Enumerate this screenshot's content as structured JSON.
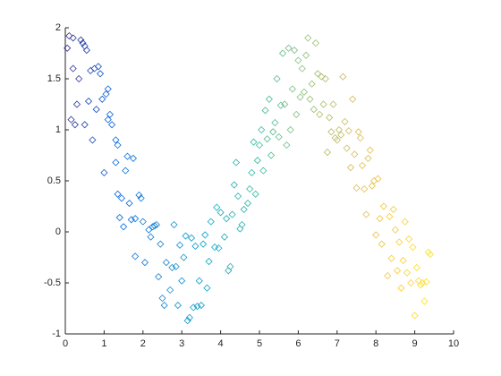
{
  "chart_data": {
    "type": "scatter",
    "marker": "diamond",
    "colormap": [
      "#352a87",
      "#0363e1",
      "#1485d4",
      "#06a7c6",
      "#38b99e",
      "#92bf73",
      "#d9ba56",
      "#fcce2e",
      "#f9fb0e"
    ],
    "x": [
      0.05,
      0.1,
      0.2,
      0.15,
      0.25,
      0.2,
      0.3,
      0.35,
      0.4,
      0.45,
      0.5,
      0.55,
      0.5,
      0.6,
      0.65,
      0.7,
      0.75,
      0.8,
      0.85,
      0.9,
      0.95,
      1.0,
      1.05,
      1.1,
      1.1,
      1.15,
      1.2,
      1.3,
      1.3,
      1.35,
      1.35,
      1.4,
      1.45,
      1.5,
      1.55,
      1.6,
      1.65,
      1.7,
      1.75,
      1.8,
      1.8,
      1.9,
      1.95,
      2.0,
      2.05,
      2.15,
      2.2,
      2.25,
      2.3,
      2.35,
      2.4,
      2.45,
      2.5,
      2.55,
      2.6,
      2.7,
      2.75,
      2.8,
      2.85,
      2.9,
      2.95,
      3.0,
      3.05,
      3.1,
      3.15,
      3.2,
      3.25,
      3.3,
      3.35,
      3.4,
      3.45,
      3.5,
      3.55,
      3.6,
      3.65,
      3.7,
      3.75,
      3.85,
      3.9,
      3.95,
      4.0,
      4.1,
      4.15,
      4.2,
      4.25,
      4.3,
      4.35,
      4.4,
      4.45,
      4.5,
      4.55,
      4.6,
      4.7,
      4.75,
      4.8,
      4.85,
      4.9,
      4.95,
      5.0,
      5.05,
      5.1,
      5.15,
      5.2,
      5.25,
      5.3,
      5.35,
      5.4,
      5.45,
      5.5,
      5.55,
      5.6,
      5.65,
      5.7,
      5.75,
      5.8,
      5.85,
      5.9,
      5.95,
      6.0,
      6.05,
      6.1,
      6.15,
      6.2,
      6.25,
      6.3,
      6.35,
      6.4,
      6.45,
      6.5,
      6.55,
      6.6,
      6.65,
      6.7,
      6.75,
      6.8,
      6.85,
      6.9,
      6.95,
      7.0,
      7.05,
      7.1,
      7.15,
      7.2,
      7.25,
      7.3,
      7.35,
      7.4,
      7.45,
      7.5,
      7.55,
      7.6,
      7.65,
      7.7,
      7.75,
      7.8,
      7.85,
      7.9,
      7.95,
      8.0,
      8.05,
      8.1,
      8.15,
      8.2,
      8.3,
      8.35,
      8.4,
      8.45,
      8.5,
      8.55,
      8.6,
      8.65,
      8.7,
      8.75,
      8.8,
      8.85,
      8.9,
      8.95,
      9.0,
      9.05,
      9.1,
      9.15,
      9.2,
      9.25,
      9.3,
      9.35,
      9.4
    ],
    "values": [
      1.8,
      1.92,
      1.9,
      1.1,
      1.05,
      1.6,
      1.25,
      1.5,
      1.88,
      1.85,
      1.82,
      1.78,
      1.05,
      1.28,
      1.58,
      0.9,
      1.6,
      1.2,
      1.62,
      1.55,
      1.3,
      0.58,
      1.35,
      1.4,
      1.1,
      1.15,
      1.05,
      0.9,
      0.68,
      0.85,
      0.37,
      0.14,
      0.33,
      0.05,
      0.6,
      0.74,
      0.28,
      0.12,
      0.72,
      -0.24,
      0.13,
      0.36,
      0.33,
      0.1,
      -0.3,
      0.02,
      -0.05,
      0.05,
      0.06,
      0.07,
      -0.44,
      -0.12,
      -0.65,
      -0.72,
      -0.3,
      -0.57,
      -0.35,
      0.07,
      -0.34,
      -0.72,
      -0.13,
      -0.48,
      -0.25,
      -0.04,
      -0.87,
      -0.84,
      -0.06,
      -0.74,
      -0.14,
      -0.73,
      -0.48,
      -0.72,
      -0.12,
      -0.03,
      -0.55,
      -0.29,
      0.1,
      -0.15,
      0.24,
      -0.16,
      0.19,
      -0.05,
      0.13,
      -0.38,
      -0.34,
      0.17,
      0.46,
      0.68,
      0.35,
      0.03,
      0.07,
      0.22,
      0.28,
      0.42,
      0.58,
      0.88,
      0.37,
      0.7,
      0.85,
      1.0,
      0.6,
      1.19,
      0.91,
      1.3,
      0.75,
      0.98,
      1.07,
      1.5,
      0.93,
      1.24,
      1.75,
      1.25,
      0.85,
      1.8,
      1.0,
      1.4,
      1.78,
      1.15,
      1.68,
      1.32,
      1.6,
      1.37,
      1.73,
      1.9,
      1.3,
      1.45,
      1.2,
      1.85,
      1.55,
      1.15,
      1.52,
      1.25,
      1.5,
      0.78,
      1.12,
      0.98,
      1.25,
      0.92,
      0.9,
      1.0,
      0.95,
      1.52,
      1.08,
      0.82,
      0.99,
      0.63,
      1.3,
      0.76,
      0.43,
      0.98,
      0.92,
      0.65,
      0.42,
      0.17,
      0.72,
      0.8,
      0.45,
      0.5,
      -0.03,
      0.52,
      0.13,
      -0.12,
      0.25,
      -0.43,
      0.15,
      -0.26,
      0.22,
      0.02,
      -0.38,
      -0.1,
      -0.55,
      -0.28,
      0.1,
      -0.4,
      -0.07,
      -0.5,
      -0.15,
      -0.82,
      -0.35,
      -0.48,
      -0.52,
      -0.5,
      -0.68,
      -0.49,
      -0.2,
      -0.22
    ],
    "xlim": [
      0,
      10
    ],
    "xticks": [
      0,
      1,
      2,
      3,
      4,
      5,
      6,
      7,
      8,
      9,
      10
    ],
    "ylim": [
      -1,
      2
    ],
    "yticks": [
      -1,
      -0.5,
      0,
      0.5,
      1,
      1.5,
      2
    ]
  }
}
